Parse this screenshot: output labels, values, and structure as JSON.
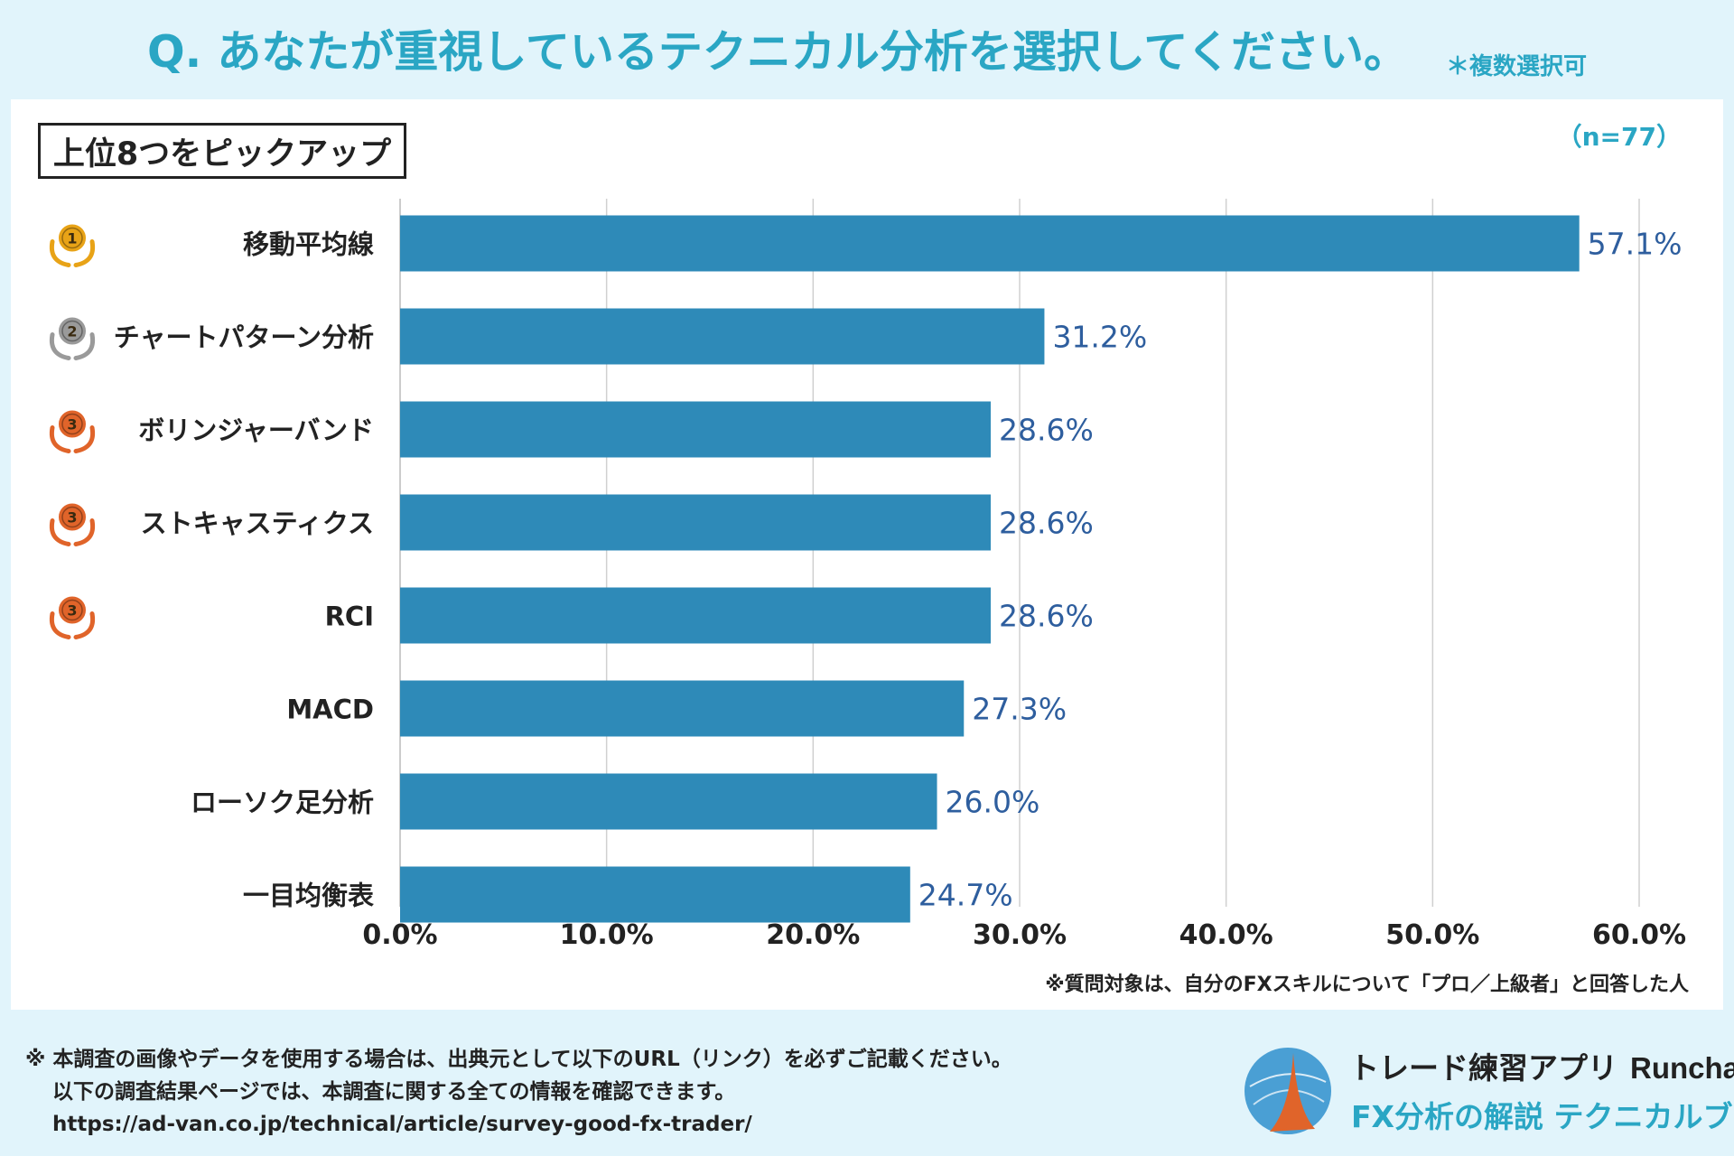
{
  "header": {
    "title": "Q. あなたが重視しているテクニカル分析を選択してください。",
    "note": "＊複数選択可"
  },
  "panel": {
    "pick_label": "上位8つをピックアップ",
    "n_label": "（n=77）",
    "footnote": "※質問対象は、自分のFXスキルについて「プロ／上級者」と回答した人"
  },
  "chart_data": {
    "type": "bar",
    "orientation": "horizontal",
    "categories": [
      "移動平均線",
      "チャートパターン分析",
      "ボリンジャーバンド",
      "ストキャスティクス",
      "RCI",
      "MACD",
      "ローソク足分析",
      "一目均衡表"
    ],
    "values": [
      57.1,
      31.2,
      28.6,
      28.6,
      28.6,
      27.3,
      26.0,
      24.7
    ],
    "value_labels": [
      "57.1%",
      "31.2%",
      "28.6%",
      "28.6%",
      "28.6%",
      "27.3%",
      "26.0%",
      "24.7%"
    ],
    "ranks": [
      "1",
      "2",
      "3",
      "3",
      "3",
      "",
      "",
      ""
    ],
    "xlim": [
      0,
      60
    ],
    "x_ticks": [
      "0.0%",
      "10.0%",
      "20.0%",
      "30.0%",
      "40.0%",
      "50.0%",
      "60.0%"
    ],
    "bar_color": "#2e8ab8",
    "label_color": "#2e5e9e",
    "medal_colors": {
      "1": "#e8a317",
      "2": "#9a9a9a",
      "3": "#e0642a"
    },
    "grid": true
  },
  "disclaimer": {
    "line1": "※ 本調査の画像やデータを使用する場合は、出典元として以下のURL（リンク）を必ずご記載ください。",
    "line2": "以下の調査結果ページでは、本調査に関する全ての情報を確認できます。",
    "line3": "https://ad-van.co.jp/technical/article/survey-good-fx-trader/"
  },
  "brand": {
    "app_name": "トレード練習アプリ",
    "app_latin": "Runcha",
    "subtitle": "FX分析の解説 テクニカルブック"
  }
}
